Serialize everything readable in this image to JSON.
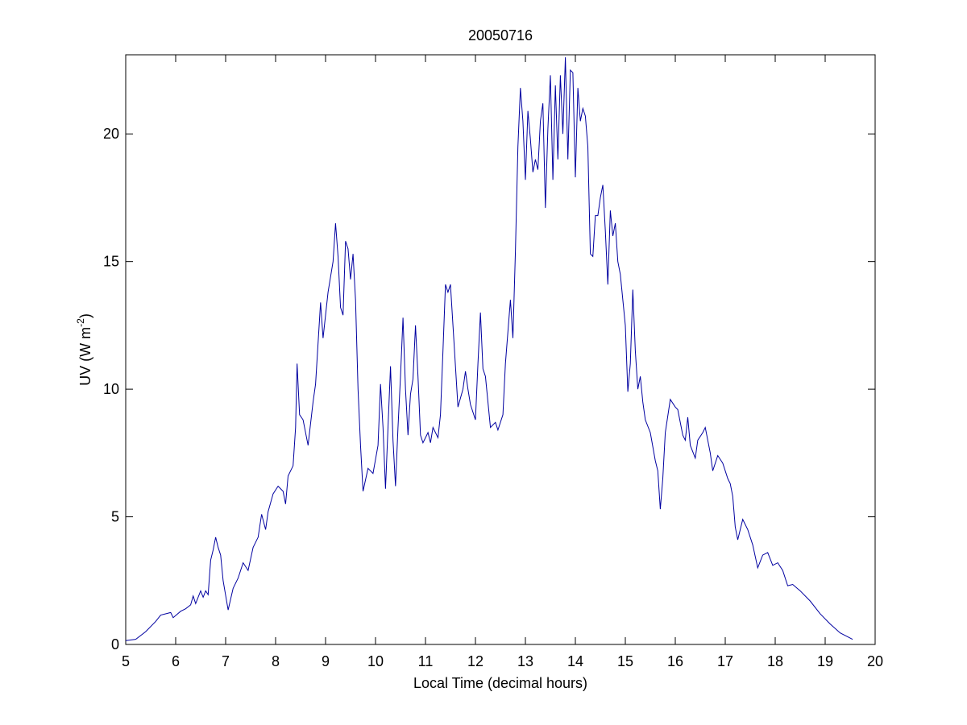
{
  "chart_data": {
    "type": "line",
    "title": "20050716",
    "xlabel": "Local Time (decimal hours)",
    "ylabel": [
      "UV (W m",
      "-2",
      ")"
    ],
    "xlim": [
      5,
      20
    ],
    "xticks": [
      5,
      6,
      7,
      8,
      9,
      10,
      11,
      12,
      13,
      14,
      15,
      16,
      17,
      18,
      19,
      20
    ],
    "ylim": [
      0,
      23.1
    ],
    "yticks": [
      0,
      5,
      10,
      15,
      20
    ],
    "series": [
      {
        "color": "#0000a0",
        "x": [
          5.0,
          5.2,
          5.4,
          5.6,
          5.7,
          5.9,
          5.95,
          6.1,
          6.2,
          6.3,
          6.35,
          6.4,
          6.5,
          6.55,
          6.6,
          6.65,
          6.7,
          6.75,
          6.8,
          6.85,
          6.9,
          6.95,
          7.05,
          7.15,
          7.25,
          7.35,
          7.45,
          7.55,
          7.65,
          7.72,
          7.8,
          7.85,
          7.95,
          8.05,
          8.15,
          8.2,
          8.25,
          8.35,
          8.4,
          8.43,
          8.48,
          8.55,
          8.65,
          8.75,
          8.8,
          8.9,
          8.95,
          9.05,
          9.15,
          9.2,
          9.25,
          9.3,
          9.35,
          9.4,
          9.45,
          9.5,
          9.55,
          9.6,
          9.65,
          9.7,
          9.75,
          9.85,
          9.95,
          10.05,
          10.1,
          10.15,
          10.2,
          10.25,
          10.3,
          10.35,
          10.4,
          10.45,
          10.5,
          10.55,
          10.6,
          10.65,
          10.7,
          10.75,
          10.8,
          10.85,
          10.9,
          10.95,
          11.05,
          11.1,
          11.15,
          11.25,
          11.3,
          11.35,
          11.4,
          11.45,
          11.5,
          11.55,
          11.65,
          11.75,
          11.8,
          11.85,
          11.9,
          12.0,
          12.05,
          12.1,
          12.15,
          12.2,
          12.3,
          12.4,
          12.45,
          12.55,
          12.6,
          12.7,
          12.75,
          12.8,
          12.85,
          12.9,
          12.95,
          13.0,
          13.05,
          13.1,
          13.15,
          13.2,
          13.25,
          13.3,
          13.35,
          13.4,
          13.45,
          13.5,
          13.55,
          13.6,
          13.65,
          13.7,
          13.75,
          13.8,
          13.85,
          13.9,
          13.95,
          14.0,
          14.05,
          14.1,
          14.15,
          14.2,
          14.25,
          14.3,
          14.35,
          14.4,
          14.45,
          14.5,
          14.55,
          14.6,
          14.65,
          14.7,
          14.75,
          14.8,
          14.85,
          14.9,
          15.0,
          15.05,
          15.1,
          15.15,
          15.2,
          15.25,
          15.3,
          15.35,
          15.4,
          15.5,
          15.6,
          15.65,
          15.7,
          15.75,
          15.8,
          15.9,
          16.0,
          16.05,
          16.15,
          16.2,
          16.25,
          16.3,
          16.4,
          16.45,
          16.55,
          16.6,
          16.7,
          16.75,
          16.85,
          16.95,
          17.05,
          17.1,
          17.15,
          17.2,
          17.25,
          17.35,
          17.45,
          17.55,
          17.65,
          17.75,
          17.85,
          17.95,
          18.05,
          18.15,
          18.25,
          18.35,
          18.5,
          18.7,
          18.9,
          19.1,
          19.3,
          19.5,
          19.55
        ],
        "values": [
          0.15,
          0.2,
          0.5,
          0.9,
          1.15,
          1.25,
          1.05,
          1.3,
          1.4,
          1.55,
          1.9,
          1.6,
          2.1,
          1.85,
          2.1,
          1.95,
          3.3,
          3.7,
          4.2,
          3.8,
          3.5,
          2.5,
          1.35,
          2.2,
          2.6,
          3.2,
          2.9,
          3.8,
          4.2,
          5.1,
          4.5,
          5.2,
          5.9,
          6.2,
          6.0,
          5.5,
          6.6,
          7.0,
          8.5,
          11.0,
          9.0,
          8.8,
          7.8,
          9.5,
          10.2,
          13.4,
          12.0,
          13.8,
          15.0,
          16.5,
          15.2,
          13.2,
          12.9,
          15.8,
          15.5,
          14.3,
          15.3,
          13.5,
          10.0,
          7.8,
          6.0,
          6.9,
          6.7,
          7.8,
          10.2,
          8.5,
          6.1,
          8.5,
          10.9,
          8.0,
          6.2,
          8.5,
          10.5,
          12.8,
          10.0,
          8.2,
          9.8,
          10.4,
          12.5,
          10.5,
          8.2,
          7.9,
          8.3,
          7.9,
          8.5,
          8.1,
          9.0,
          11.5,
          14.1,
          13.8,
          14.1,
          12.5,
          9.3,
          10.0,
          10.7,
          10.0,
          9.4,
          8.8,
          11.0,
          13.0,
          10.8,
          10.5,
          8.5,
          8.7,
          8.4,
          9.0,
          11.0,
          13.5,
          12.0,
          15.4,
          19.5,
          21.8,
          20.5,
          18.2,
          20.9,
          19.8,
          18.5,
          19.0,
          18.6,
          20.5,
          21.2,
          17.1,
          20.2,
          22.3,
          18.2,
          21.9,
          19.0,
          22.3,
          20.0,
          23.0,
          19.0,
          22.5,
          22.4,
          18.3,
          21.8,
          20.5,
          21.0,
          20.7,
          19.5,
          15.3,
          15.2,
          16.8,
          16.8,
          17.5,
          18.0,
          16.2,
          14.1,
          17.0,
          16.0,
          16.5,
          15.0,
          14.5,
          12.5,
          9.9,
          11.0,
          13.9,
          11.5,
          10.0,
          10.5,
          9.5,
          8.8,
          8.3,
          7.2,
          6.8,
          5.3,
          6.5,
          8.3,
          9.6,
          9.3,
          9.2,
          8.2,
          8.0,
          8.9,
          7.8,
          7.3,
          8.0,
          8.3,
          8.5,
          7.5,
          6.8,
          7.4,
          7.1,
          6.5,
          6.3,
          5.8,
          4.6,
          4.1,
          4.9,
          4.5,
          3.9,
          3.0,
          3.5,
          3.6,
          3.1,
          3.2,
          2.9,
          2.3,
          2.35,
          2.1,
          1.7,
          1.2,
          0.8,
          0.45,
          0.25,
          0.2
        ]
      }
    ]
  }
}
